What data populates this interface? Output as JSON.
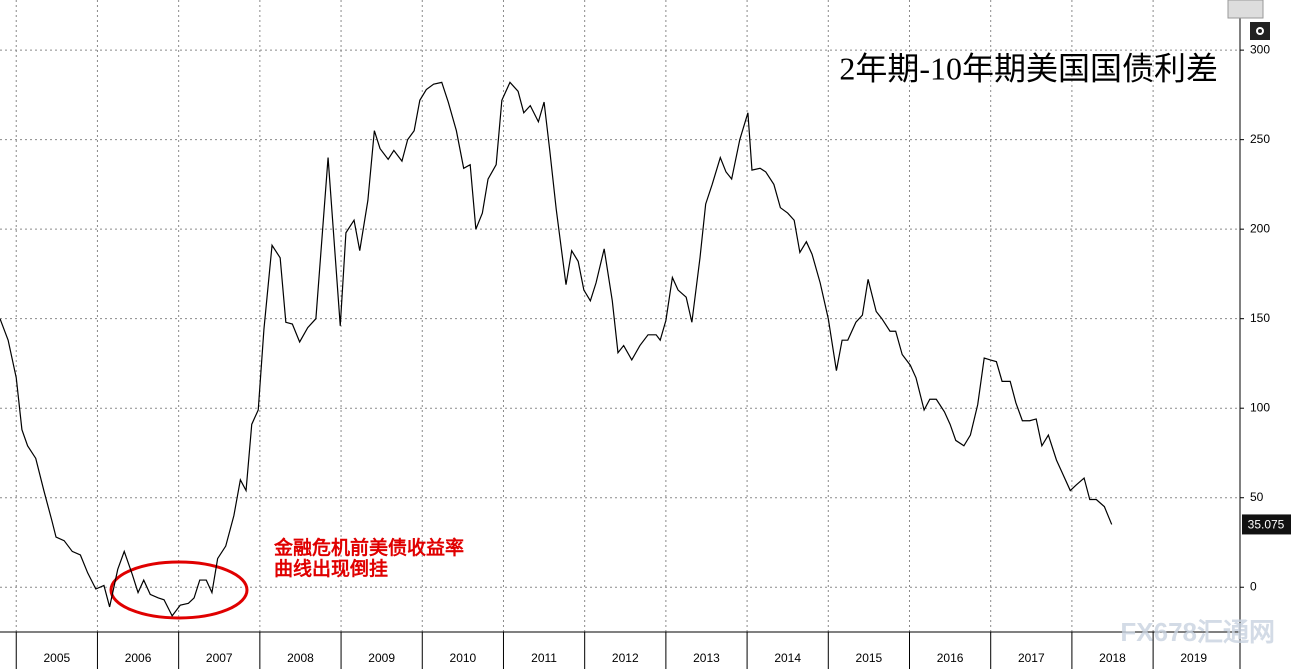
{
  "chart_data": {
    "type": "line",
    "title": "2年期-10年期美国国债利差",
    "annotation": [
      "金融危机前美债收益率",
      "曲线出现倒挂"
    ],
    "watermark": "FX678汇通网",
    "color": "#000000",
    "annotation_color": "#e00000",
    "grid": true,
    "x": [
      2004.8,
      2004.9,
      2005.0,
      2005.07,
      2005.14,
      2005.24,
      2005.34,
      2005.44,
      2005.49,
      2005.59,
      2005.69,
      2005.79,
      2005.88,
      2005.98,
      2006.08,
      2006.15,
      2006.25,
      2006.33,
      2006.43,
      2006.5,
      2006.57,
      2006.65,
      2006.75,
      2006.82,
      2006.92,
      2007.02,
      2007.12,
      2007.19,
      2007.26,
      2007.34,
      2007.41,
      2007.48,
      2007.58,
      2007.68,
      2007.76,
      2007.83,
      2007.9,
      2007.98,
      2008.05,
      2008.15,
      2008.25,
      2008.32,
      2008.4,
      2008.49,
      2008.59,
      2008.69,
      2008.84,
      2008.99,
      2009.06,
      2009.16,
      2009.23,
      2009.33,
      2009.41,
      2009.48,
      2009.58,
      2009.65,
      2009.75,
      2009.82,
      2009.9,
      2009.97,
      2010.05,
      2010.14,
      2010.24,
      2010.32,
      2010.42,
      2010.51,
      2010.59,
      2010.66,
      2010.74,
      2010.81,
      2010.91,
      2010.98,
      2011.08,
      2011.18,
      2011.25,
      2011.33,
      2011.43,
      2011.5,
      2011.57,
      2011.65,
      2011.77,
      2011.84,
      2011.92,
      2011.99,
      2012.07,
      2012.14,
      2012.24,
      2012.34,
      2012.41,
      2012.48,
      2012.58,
      2012.68,
      2012.78,
      2012.88,
      2012.93,
      2013.0,
      2013.08,
      2013.15,
      2013.25,
      2013.32,
      2013.42,
      2013.49,
      2013.57,
      2013.67,
      2013.74,
      2013.81,
      2013.91,
      2014.01,
      2014.06,
      2014.16,
      2014.23,
      2014.33,
      2014.41,
      2014.5,
      2014.58,
      2014.65,
      2014.73,
      2014.8,
      2014.9,
      2015.0,
      2015.1,
      2015.17,
      2015.24,
      2015.34,
      2015.42,
      2015.49,
      2015.59,
      2015.66,
      2015.76,
      2015.83,
      2015.91,
      2016.01,
      2016.08,
      2016.18,
      2016.25,
      2016.33,
      2016.43,
      2016.5,
      2016.57,
      2016.67,
      2016.75,
      2016.84,
      2016.92,
      2016.99,
      2017.07,
      2017.14,
      2017.24,
      2017.31,
      2017.39,
      2017.48,
      2017.56,
      2017.63,
      2017.71,
      2017.81,
      2017.88,
      2017.98,
      2018.05,
      2018.15,
      2018.22,
      2018.3,
      2018.4,
      2018.49
    ],
    "values": [
      150,
      138,
      117,
      88,
      79,
      72,
      54,
      37,
      28,
      26,
      20,
      18,
      8,
      -1,
      1,
      -11,
      10,
      20,
      7,
      -3,
      4,
      -4,
      -6,
      -7,
      -16,
      -10,
      -9,
      -6,
      4,
      4,
      -3,
      16,
      23,
      40,
      60,
      54,
      91,
      99,
      144,
      191,
      184,
      148,
      147,
      137,
      145,
      150,
      240,
      146,
      198,
      205,
      188,
      216,
      255,
      245,
      239,
      244,
      238,
      250,
      255,
      272,
      278,
      281,
      282,
      271,
      255,
      234,
      236,
      200,
      209,
      228,
      236,
      272,
      282,
      277,
      265,
      269,
      260,
      271,
      244,
      211,
      169,
      188,
      182,
      166,
      160,
      170,
      189,
      160,
      131,
      135,
      127,
      135,
      141,
      141,
      138,
      149,
      173,
      166,
      162,
      148,
      184,
      214,
      225,
      240,
      232,
      228,
      250,
      265,
      233,
      234,
      232,
      225,
      212,
      209,
      205,
      187,
      193,
      186,
      170,
      150,
      121,
      138,
      138,
      148,
      152,
      172,
      154,
      150,
      143,
      143,
      130,
      124,
      117,
      99,
      105,
      105,
      98,
      91,
      82,
      79,
      85,
      102,
      128,
      127,
      126,
      115,
      115,
      103,
      93,
      93,
      94,
      79,
      85,
      71,
      64,
      54,
      57,
      61,
      49,
      49,
      45,
      35.075
    ],
    "xlim": [
      2004.8,
      2020.07
    ],
    "xticks": [
      2005,
      2006,
      2007,
      2008,
      2009,
      2010,
      2011,
      2012,
      2013,
      2014,
      2015,
      2016,
      2017,
      2018,
      2019
    ],
    "ylim": [
      -25,
      328
    ],
    "yticks": [
      0,
      50,
      100,
      150,
      200,
      250,
      300
    ]
  }
}
